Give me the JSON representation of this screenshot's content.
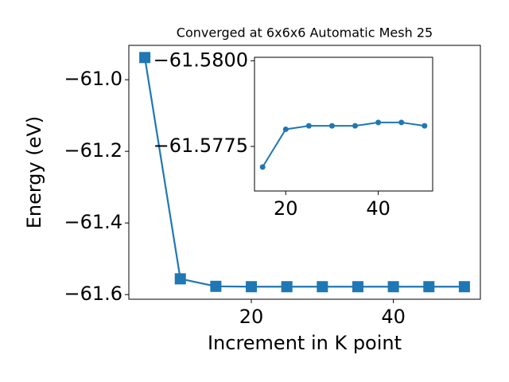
{
  "chart_data": [
    {
      "type": "line",
      "title": "Converged at 6x6x6 Automatic Mesh 25",
      "x_label": "Increment in K point",
      "y_label": "Energy (eV)",
      "x": [
        5,
        10,
        15,
        20,
        25,
        30,
        35,
        40,
        45,
        50
      ],
      "series": [
        {
          "color": "#1f77b4",
          "marker": "square",
          "values": [
            -60.938,
            -61.556,
            -61.577,
            -61.578,
            -61.578,
            -61.578,
            -61.578,
            -61.578,
            -61.578,
            -61.578
          ]
        }
      ],
      "xlim": [
        2.75,
        52.25
      ],
      "xticks": [
        20,
        40
      ],
      "ylim": [
        -61.613,
        -60.904
      ],
      "yticks": [
        {
          "value": -61.6,
          "label": "−61.6"
        },
        {
          "value": -61.4,
          "label": "−61.4"
        },
        {
          "value": -61.2,
          "label": "−61.2"
        },
        {
          "value": -61.0,
          "label": "−61.0"
        }
      ]
    },
    {
      "type": "line",
      "x": [
        15,
        20,
        25,
        30,
        35,
        40,
        45,
        50
      ],
      "series": [
        {
          "color": "#1f77b4",
          "marker": "circle",
          "values": [
            -61.5769,
            -61.578,
            -61.5781,
            -61.5781,
            -61.5781,
            -61.5782,
            -61.5782,
            -61.5781
          ]
        }
      ],
      "xlim": [
        13.25,
        51.75
      ],
      "xticks": [
        20,
        40
      ],
      "ylim": [
        -61.5762,
        -61.5801
      ],
      "yticks": [
        {
          "value": -61.5775,
          "label": "−61.5775"
        },
        {
          "value": -61.58,
          "label": "−61.5800"
        }
      ]
    }
  ]
}
